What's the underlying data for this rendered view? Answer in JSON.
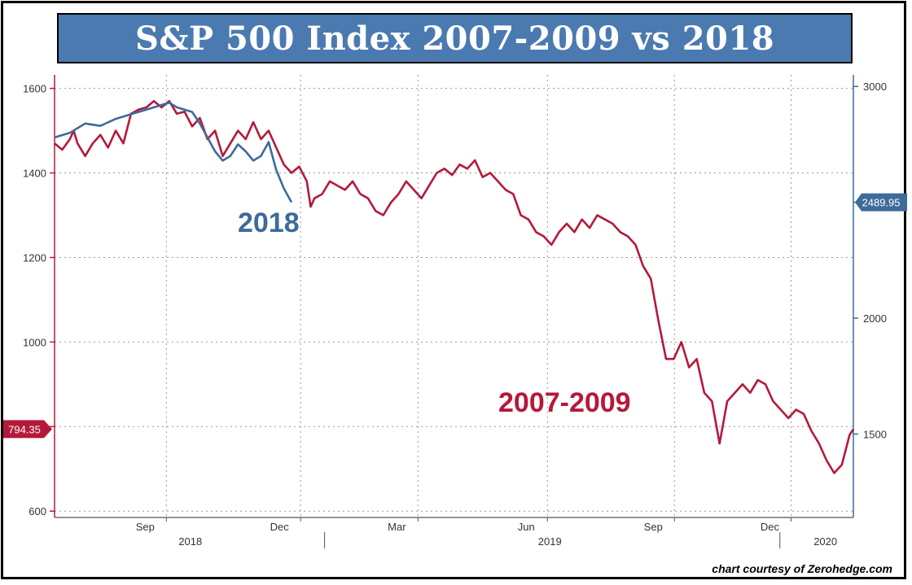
{
  "title": "S&P 500 Index 2007-2009 vs 2018",
  "credit": "chart courtesy of Zerohedge.com",
  "chart_data": {
    "type": "line",
    "left_axis": {
      "ticks": [
        600,
        800,
        1000,
        1200,
        1400,
        1600
      ],
      "tick_labels": [
        "600",
        "",
        "1000",
        "1200",
        "1400",
        "1600"
      ],
      "range": [
        585,
        1632
      ]
    },
    "right_axis": {
      "ticks": [
        1500,
        2000,
        2500,
        3000
      ],
      "tick_labels": [
        "1500",
        "2000",
        "2500",
        "3000"
      ],
      "range": [
        1140,
        3050
      ]
    },
    "x_ticks": [
      {
        "label": "Sep",
        "pos": 0.14
      },
      {
        "label": "Dec",
        "pos": 0.308
      },
      {
        "label": "Mar",
        "pos": 0.455
      },
      {
        "label": "Jun",
        "pos": 0.617
      },
      {
        "label": "Sep",
        "pos": 0.776
      },
      {
        "label": "Dec",
        "pos": 0.922
      }
    ],
    "x_year_labels": [
      {
        "label": "2018",
        "pos": 0.17
      },
      {
        "label": "2019",
        "pos": 0.62
      },
      {
        "label": "2020",
        "pos": 0.965
      }
    ],
    "x_year_dividers": [
      0.338,
      0.908
    ],
    "grid": true,
    "series": [
      {
        "name": "2007-2009",
        "axis": "left",
        "color": "#b5193a",
        "last_value": "794.35",
        "points": [
          [
            0.0,
            1470
          ],
          [
            0.01,
            1455
          ],
          [
            0.02,
            1480
          ],
          [
            0.025,
            1500
          ],
          [
            0.03,
            1470
          ],
          [
            0.04,
            1440
          ],
          [
            0.05,
            1470
          ],
          [
            0.06,
            1490
          ],
          [
            0.07,
            1460
          ],
          [
            0.08,
            1500
          ],
          [
            0.09,
            1470
          ],
          [
            0.1,
            1540
          ],
          [
            0.11,
            1550
          ],
          [
            0.12,
            1555
          ],
          [
            0.13,
            1570
          ],
          [
            0.14,
            1555
          ],
          [
            0.15,
            1570
          ],
          [
            0.16,
            1540
          ],
          [
            0.17,
            1545
          ],
          [
            0.18,
            1510
          ],
          [
            0.19,
            1530
          ],
          [
            0.2,
            1480
          ],
          [
            0.21,
            1500
          ],
          [
            0.22,
            1440
          ],
          [
            0.23,
            1470
          ],
          [
            0.24,
            1500
          ],
          [
            0.25,
            1480
          ],
          [
            0.26,
            1520
          ],
          [
            0.27,
            1480
          ],
          [
            0.28,
            1500
          ],
          [
            0.29,
            1460
          ],
          [
            0.3,
            1420
          ],
          [
            0.31,
            1400
          ],
          [
            0.32,
            1415
          ],
          [
            0.33,
            1380
          ],
          [
            0.335,
            1320
          ],
          [
            0.34,
            1340
          ],
          [
            0.35,
            1350
          ],
          [
            0.36,
            1380
          ],
          [
            0.37,
            1370
          ],
          [
            0.38,
            1360
          ],
          [
            0.39,
            1380
          ],
          [
            0.4,
            1350
          ],
          [
            0.41,
            1340
          ],
          [
            0.42,
            1310
          ],
          [
            0.43,
            1300
          ],
          [
            0.44,
            1330
          ],
          [
            0.45,
            1350
          ],
          [
            0.46,
            1380
          ],
          [
            0.47,
            1360
          ],
          [
            0.48,
            1340
          ],
          [
            0.49,
            1370
          ],
          [
            0.5,
            1400
          ],
          [
            0.51,
            1410
          ],
          [
            0.52,
            1395
          ],
          [
            0.53,
            1420
          ],
          [
            0.54,
            1410
          ],
          [
            0.55,
            1430
          ],
          [
            0.56,
            1390
          ],
          [
            0.57,
            1400
          ],
          [
            0.58,
            1380
          ],
          [
            0.59,
            1360
          ],
          [
            0.6,
            1350
          ],
          [
            0.61,
            1300
          ],
          [
            0.62,
            1290
          ],
          [
            0.63,
            1260
          ],
          [
            0.64,
            1250
          ],
          [
            0.65,
            1230
          ],
          [
            0.66,
            1260
          ],
          [
            0.67,
            1280
          ],
          [
            0.68,
            1260
          ],
          [
            0.69,
            1290
          ],
          [
            0.7,
            1270
          ],
          [
            0.71,
            1300
          ],
          [
            0.72,
            1290
          ],
          [
            0.73,
            1280
          ],
          [
            0.74,
            1260
          ],
          [
            0.75,
            1250
          ],
          [
            0.76,
            1230
          ],
          [
            0.77,
            1180
          ],
          [
            0.78,
            1150
          ],
          [
            0.79,
            1050
          ],
          [
            0.8,
            960
          ],
          [
            0.81,
            960
          ],
          [
            0.82,
            1000
          ],
          [
            0.83,
            940
          ],
          [
            0.84,
            960
          ],
          [
            0.85,
            880
          ],
          [
            0.86,
            860
          ],
          [
            0.87,
            760
          ],
          [
            0.88,
            860
          ],
          [
            0.89,
            880
          ],
          [
            0.9,
            900
          ],
          [
            0.91,
            880
          ],
          [
            0.92,
            910
          ],
          [
            0.93,
            900
          ],
          [
            0.94,
            860
          ],
          [
            0.95,
            840
          ],
          [
            0.96,
            820
          ],
          [
            0.97,
            840
          ],
          [
            0.98,
            830
          ],
          [
            0.99,
            790
          ],
          [
            1.0,
            760
          ],
          [
            1.01,
            720
          ],
          [
            1.02,
            690
          ],
          [
            1.03,
            710
          ],
          [
            1.04,
            780
          ],
          [
            1.045,
            794
          ]
        ]
      },
      {
        "name": "2018",
        "axis": "right",
        "color": "#3d6b9a",
        "last_value": "2489.95",
        "points": [
          [
            0.0,
            2780
          ],
          [
            0.02,
            2800
          ],
          [
            0.04,
            2840
          ],
          [
            0.06,
            2830
          ],
          [
            0.08,
            2860
          ],
          [
            0.1,
            2880
          ],
          [
            0.12,
            2900
          ],
          [
            0.14,
            2920
          ],
          [
            0.15,
            2930
          ],
          [
            0.16,
            2910
          ],
          [
            0.17,
            2900
          ],
          [
            0.18,
            2890
          ],
          [
            0.19,
            2840
          ],
          [
            0.2,
            2780
          ],
          [
            0.21,
            2720
          ],
          [
            0.22,
            2680
          ],
          [
            0.23,
            2700
          ],
          [
            0.24,
            2750
          ],
          [
            0.25,
            2720
          ],
          [
            0.26,
            2680
          ],
          [
            0.27,
            2700
          ],
          [
            0.28,
            2760
          ],
          [
            0.29,
            2640
          ],
          [
            0.3,
            2560
          ],
          [
            0.31,
            2500
          ]
        ]
      }
    ],
    "series_labels": [
      {
        "text": "2018",
        "series": "2018"
      },
      {
        "text": "2007-2009",
        "series": "2007-2009"
      }
    ]
  }
}
